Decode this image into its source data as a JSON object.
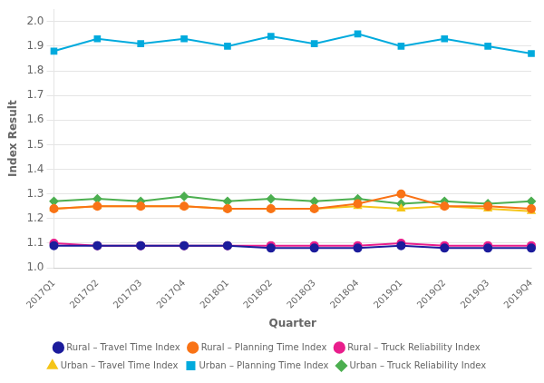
{
  "chart_data": {
    "type": "line",
    "categories": [
      "2017Q1",
      "2017Q2",
      "2017Q3",
      "2017Q4",
      "2018Q1",
      "2018Q2",
      "2018Q3",
      "2018Q4",
      "2019Q1",
      "2019Q2",
      "2019Q3",
      "2019Q4"
    ],
    "series": [
      {
        "name": "Rural – Travel Time Index",
        "color": "#1c1c9c",
        "marker": "circle",
        "line_style": "solid",
        "values": [
          1.09,
          1.09,
          1.09,
          1.09,
          1.09,
          1.08,
          1.08,
          1.08,
          1.09,
          1.08,
          1.08,
          1.08
        ]
      },
      {
        "name": "Rural – Planning Time Index",
        "color": "#f97316",
        "marker": "circle",
        "line_style": "solid",
        "values": [
          1.24,
          1.25,
          1.25,
          1.25,
          1.24,
          1.24,
          1.24,
          1.26,
          1.3,
          1.25,
          1.25,
          1.24
        ]
      },
      {
        "name": "Rural – Truck Reliability Index",
        "color": "#e91e8c",
        "marker": "circle",
        "line_style": "solid",
        "values": [
          1.1,
          1.09,
          1.09,
          1.09,
          1.09,
          1.09,
          1.09,
          1.09,
          1.1,
          1.09,
          1.09,
          1.09
        ]
      },
      {
        "name": "Urban – Travel Time Index",
        "color": "#f5c518",
        "marker": "triangle",
        "line_style": "solid",
        "values": [
          1.24,
          1.25,
          1.25,
          1.25,
          1.24,
          1.24,
          1.24,
          1.25,
          1.24,
          1.25,
          1.24,
          1.23
        ]
      },
      {
        "name": "Urban – Planning Time Index",
        "color": "#00aadd",
        "marker": "square",
        "line_style": "solid",
        "values": [
          1.88,
          1.93,
          1.91,
          1.93,
          1.9,
          1.94,
          1.91,
          1.95,
          1.9,
          1.93,
          1.9,
          1.87
        ]
      },
      {
        "name": "Urban – Truck Reliability Index",
        "color": "#4caf50",
        "marker": "diamond",
        "line_style": "solid",
        "values": [
          1.27,
          1.28,
          1.27,
          1.29,
          1.27,
          1.28,
          1.27,
          1.28,
          1.26,
          1.27,
          1.26,
          1.27
        ]
      }
    ],
    "xlabel": "Quarter",
    "ylabel": "Index Result",
    "ylim": [
      1.0,
      2.05
    ],
    "yticks": [
      {
        "value": 1.0,
        "label": "1.0"
      },
      1.1,
      1.2,
      1.3,
      1.4,
      1.5,
      1.6,
      1.7,
      1.8,
      1.9,
      {
        "value": 2.0,
        "label": "2.0"
      }
    ],
    "grid": "y",
    "legend": "bottom"
  }
}
